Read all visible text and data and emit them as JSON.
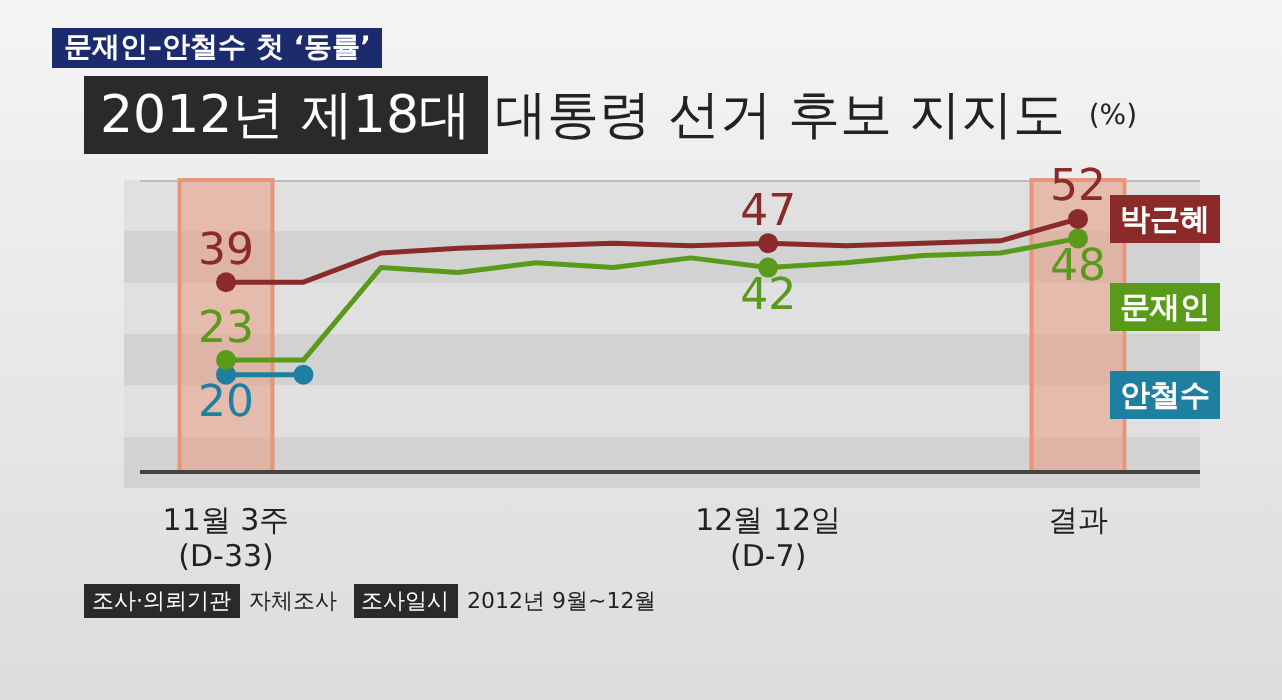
{
  "chart_data": {
    "type": "line",
    "subtitle": "문재인–안철수 첫 ‘동률’",
    "title": "2012년 제18대 대통령 선거 후보 지지도",
    "ylabel": "(%)",
    "categories": [
      "11월 3주 (D-33)",
      null,
      null,
      null,
      null,
      null,
      null,
      "12월 12일 (D-7)",
      null,
      null,
      null,
      "결과"
    ],
    "series": [
      {
        "name": "박근혜",
        "color": "#8b2a2a",
        "values": [
          39,
          39,
          45,
          46,
          46.5,
          47,
          46.5,
          47,
          46.5,
          47,
          47.5,
          52
        ],
        "value_labels": [
          "39",
          null,
          null,
          null,
          null,
          null,
          null,
          "47",
          null,
          null,
          null,
          "52"
        ]
      },
      {
        "name": "문재인",
        "color": "#5a9a1a",
        "values": [
          23,
          23,
          42,
          41,
          43,
          42,
          44,
          42,
          43,
          44.5,
          45,
          48
        ],
        "value_labels": [
          "23",
          null,
          null,
          null,
          null,
          null,
          null,
          "42",
          null,
          null,
          null,
          "48"
        ]
      },
      {
        "name": "안철수",
        "color": "#1f7fa0",
        "marker": "circle",
        "values": [
          20,
          20,
          null,
          null,
          null,
          null,
          null,
          null,
          null,
          null,
          null,
          null
        ],
        "value_labels": [
          "20",
          null,
          null,
          null,
          null,
          null,
          null,
          null,
          null,
          null,
          null,
          null
        ]
      }
    ],
    "ylim": [
      0,
      60
    ],
    "tick_labels": "x",
    "legend": "right",
    "line_style": "solid",
    "bands": [
      {
        "axis": "x",
        "from": "11월 3주 (D-33)",
        "to": "11월 3주 (D-33)",
        "color": "#e8957a"
      },
      {
        "axis": "x",
        "from": "결과",
        "to": "결과",
        "color": "#e8957a"
      }
    ],
    "annotations": [
      "조사·의뢰기관",
      "자체조사",
      "조사일시",
      "2012년 9월~12월"
    ]
  }
}
